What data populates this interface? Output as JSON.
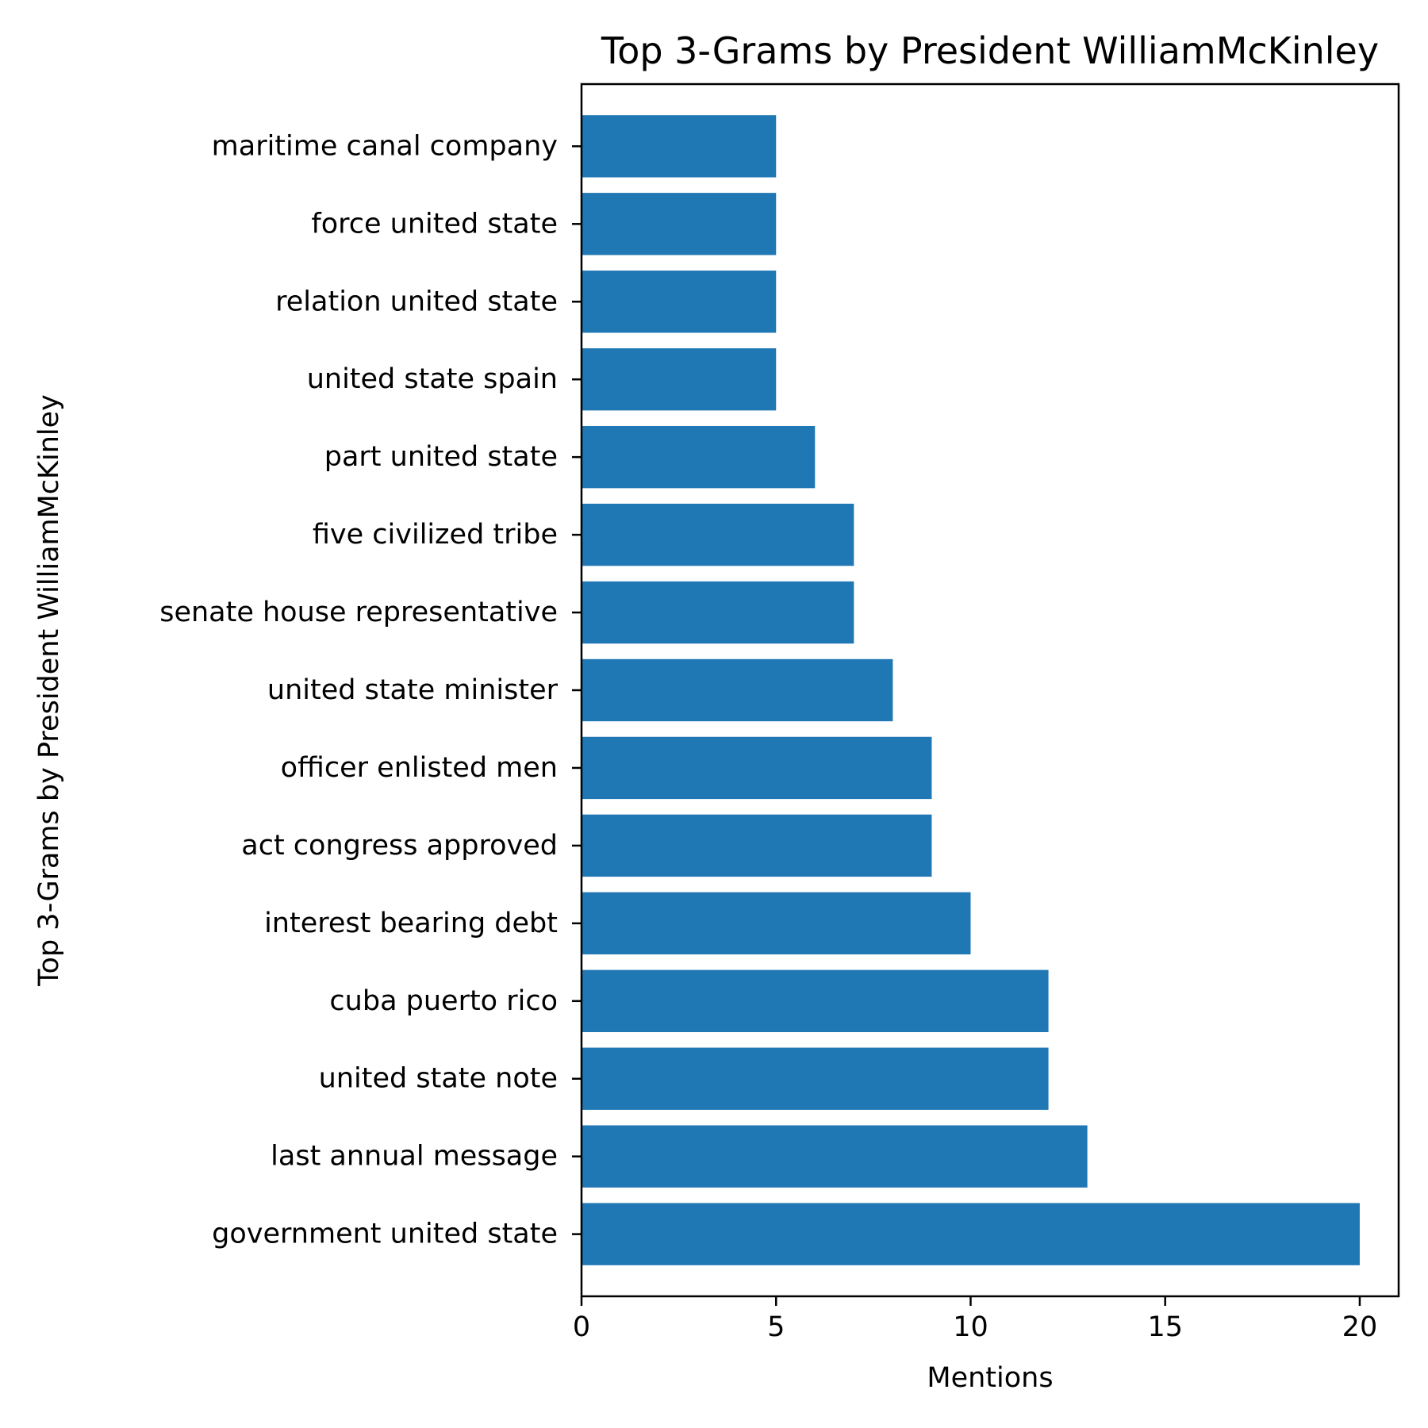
{
  "chart_data": {
    "type": "bar",
    "orientation": "horizontal",
    "title": "Top 3-Grams by President WilliamMcKinley",
    "xlabel": "Mentions",
    "ylabel": "Top 3-Grams by President WilliamMcKinley",
    "categories": [
      "government united state",
      "last annual message",
      "united state note",
      "cuba puerto rico",
      "interest bearing debt",
      "act congress approved",
      "officer enlisted men",
      "united state minister",
      "senate house representative",
      "five civilized tribe",
      "part united state",
      "united state spain",
      "relation united state",
      "force united state",
      "maritime canal company"
    ],
    "values": [
      20,
      13,
      12,
      12,
      10,
      9,
      9,
      8,
      7,
      7,
      6,
      5,
      5,
      5,
      5
    ],
    "xlim": [
      0,
      21
    ],
    "xticks": [
      0,
      5,
      10,
      15,
      20
    ],
    "bar_color": "#1f77b4",
    "grid": false,
    "legend": false
  }
}
